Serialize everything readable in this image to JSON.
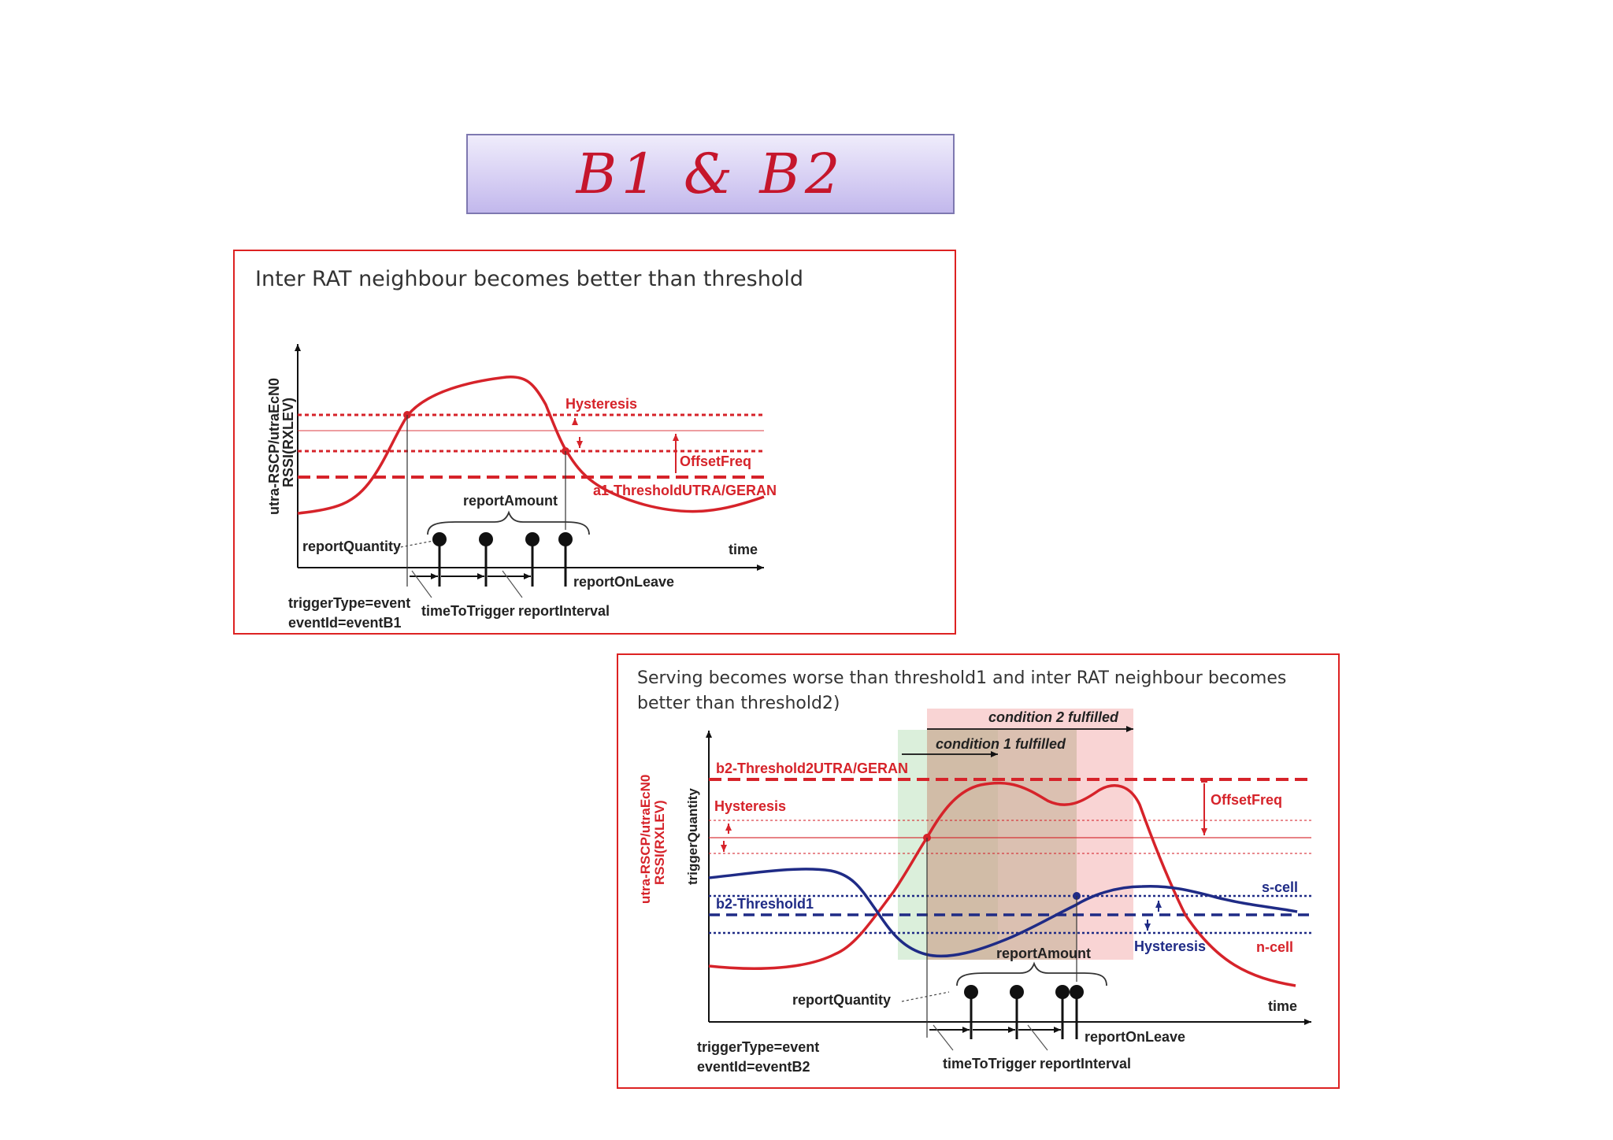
{
  "title": "B1 & B2",
  "colors": {
    "red": "#d6232a",
    "navy": "#1f2b86",
    "black": "#111111",
    "title_red": "#c5162c"
  },
  "b1": {
    "heading": "Inter RAT neighbour becomes better than threshold",
    "y_label_1": "utra-RSCP/utraEcN0",
    "y_label_2": "RSSI(RXLEV)",
    "x_label": "time",
    "hysteresis": "Hysteresis",
    "offset_freq": "OffsetFreq",
    "threshold": "a1-ThresholdUTRA/GERAN",
    "report_amount": "reportAmount",
    "report_quantity": "reportQuantity",
    "report_on_leave": "reportOnLeave",
    "time_to_trigger": "timeToTrigger",
    "report_interval": "reportInterval",
    "trigger_type": "triggerType=event",
    "event_id": "eventId=eventB1"
  },
  "b2": {
    "heading": "Serving becomes worse than threshold1 and inter RAT neighbour becomes better than threshold2)",
    "y_label_1": "utra-RSCP/utraEcN0",
    "y_label_2": "RSSI(RXLEV)",
    "y_label_3": "triggerQuantity",
    "x_label": "time",
    "condition2": "condition 2 fulfilled",
    "condition1": "condition 1 fulfilled",
    "threshold2": "b2-Threshold2UTRA/GERAN",
    "hysteresis_red": "Hysteresis",
    "offset_freq": "OffsetFreq",
    "s_cell": "s-cell",
    "threshold1": "b2-Threshold1",
    "hysteresis_blue": "Hysteresis",
    "n_cell": "n-cell",
    "report_amount": "reportAmount",
    "report_quantity": "reportQuantity",
    "report_on_leave": "reportOnLeave",
    "time_to_trigger": "timeToTrigger",
    "report_interval": "reportInterval",
    "trigger_type": "triggerType=event",
    "event_id": "eventId=eventB2"
  }
}
